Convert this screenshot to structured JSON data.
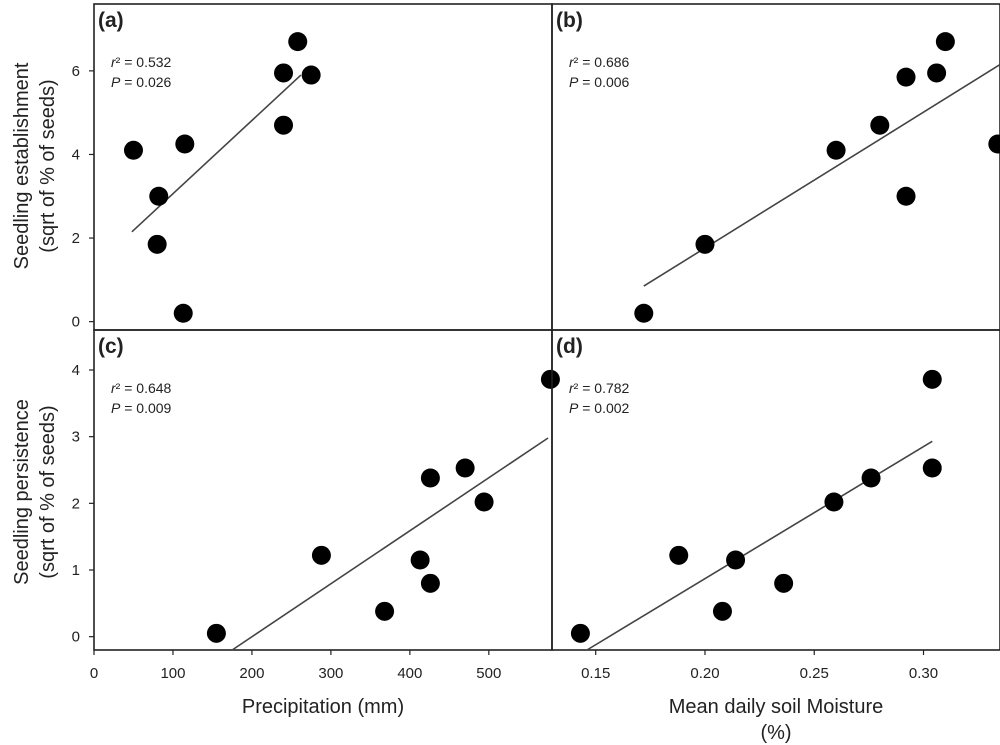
{
  "chart_data": [
    {
      "panel": "(a)",
      "type": "scatter",
      "stats": {
        "r2": "r² = 0.532",
        "p": "P = 0.026"
      },
      "xlim": [
        0,
        580
      ],
      "ylim": [
        -0.2,
        7.6
      ],
      "xticks": [],
      "yticks": [
        0,
        2,
        4,
        6
      ],
      "x": [
        50,
        82,
        80,
        113,
        115,
        240,
        240,
        258,
        275
      ],
      "y": [
        4.1,
        3.0,
        1.85,
        0.2,
        4.25,
        4.7,
        5.95,
        6.7,
        5.9
      ],
      "fit": {
        "x": [
          48,
          262
        ],
        "y": [
          2.15,
          5.9
        ]
      }
    },
    {
      "panel": "(b)",
      "type": "scatter",
      "stats": {
        "r2": "r² = 0.686",
        "p": "P = 0.006"
      },
      "xlim": [
        0.13,
        0.335
      ],
      "ylim": [
        -0.2,
        7.6
      ],
      "xticks": [],
      "yticks": [],
      "x": [
        0.172,
        0.2,
        0.26,
        0.28,
        0.292,
        0.292,
        0.306,
        0.31,
        0.334
      ],
      "y": [
        0.2,
        1.85,
        4.1,
        4.7,
        5.85,
        3.0,
        5.95,
        6.7,
        4.25
      ],
      "fit": {
        "x": [
          0.172,
          0.335
        ],
        "y": [
          0.85,
          6.15
        ]
      }
    },
    {
      "panel": "(c)",
      "type": "scatter",
      "stats": {
        "r2": "r² = 0.648",
        "p": "P = 0.009"
      },
      "xlim": [
        0,
        580
      ],
      "ylim": [
        -0.2,
        4.6
      ],
      "xticks": [
        0,
        100,
        200,
        300,
        400,
        500
      ],
      "yticks": [
        0,
        1,
        2,
        3,
        4
      ],
      "xlabel": "Precipitation (mm)",
      "x": [
        155,
        288,
        368,
        413,
        426,
        426,
        470,
        494,
        578
      ],
      "y": [
        0.05,
        1.22,
        0.38,
        1.15,
        0.8,
        2.38,
        2.53,
        2.02,
        3.86
      ],
      "fit": {
        "x": [
          175,
          575
        ],
        "y": [
          -0.2,
          2.98
        ]
      }
    },
    {
      "panel": "(d)",
      "type": "scatter",
      "stats": {
        "r2": "r² = 0.782",
        "p": "P = 0.002"
      },
      "xlim": [
        0.13,
        0.335
      ],
      "ylim": [
        -0.2,
        4.6
      ],
      "xticks": [
        0.15,
        0.2,
        0.25,
        0.3
      ],
      "xtick_labels": [
        "0.15",
        "0.20",
        "0.25",
        "0.30"
      ],
      "yticks": [],
      "xlabel_line1": "Mean daily soil Moisture",
      "xlabel_line2": "(%)",
      "x": [
        0.143,
        0.188,
        0.208,
        0.214,
        0.236,
        0.259,
        0.276,
        0.304,
        0.304
      ],
      "y": [
        0.05,
        1.22,
        0.38,
        1.15,
        0.8,
        2.02,
        2.38,
        2.53,
        3.86
      ],
      "fit": {
        "x": [
          0.146,
          0.304
        ],
        "y": [
          -0.2,
          2.93
        ]
      }
    }
  ],
  "ylabels": {
    "top_line1": "Seedling establishment",
    "top_line2": "(sqrt of % of seeds)",
    "bottom_line1": "Seedling persistence",
    "bottom_line2": "(sqrt of % of seeds)"
  }
}
